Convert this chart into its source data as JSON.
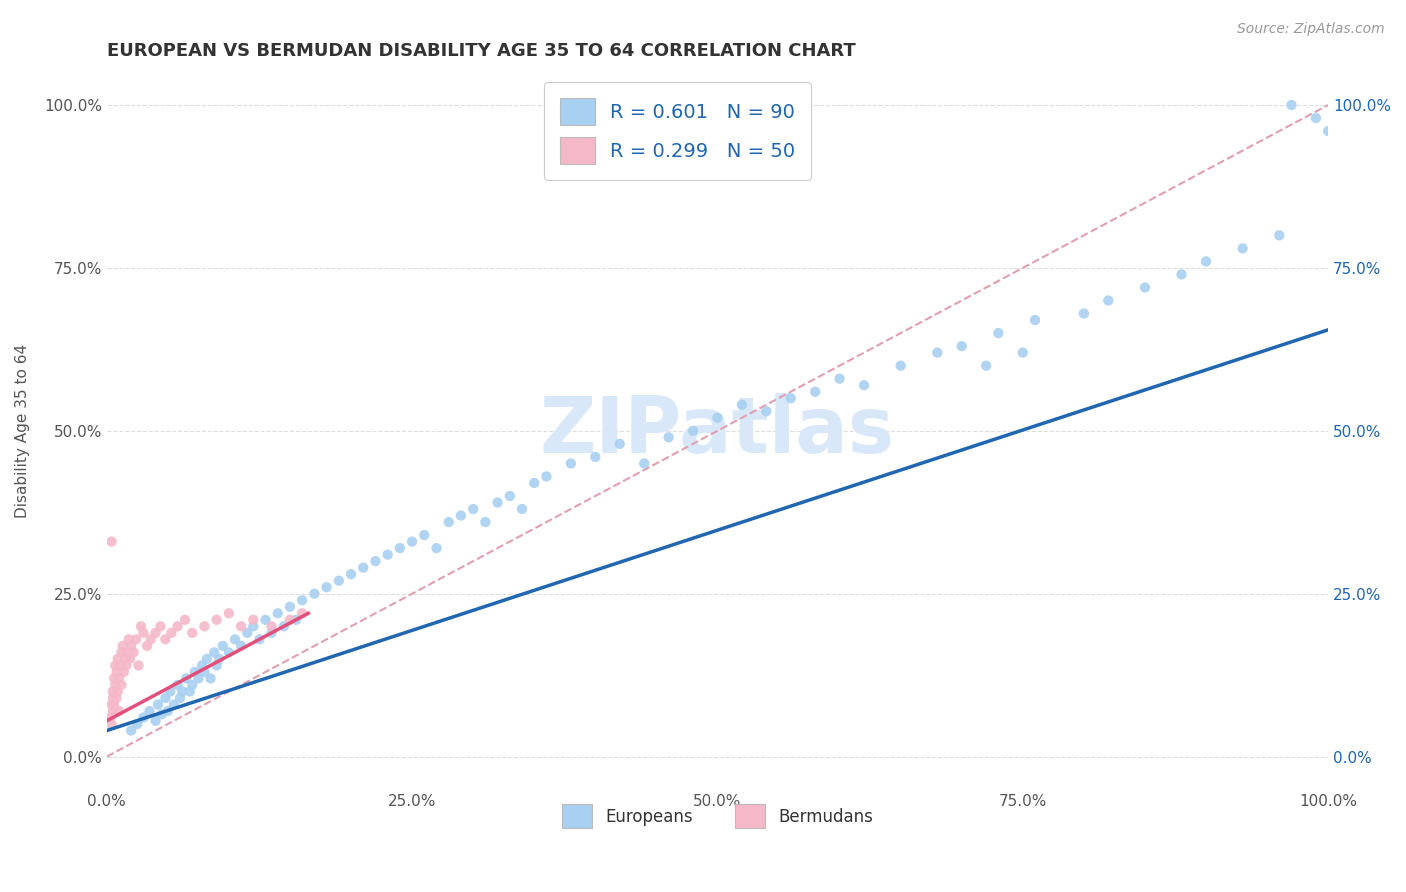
{
  "title": "EUROPEAN VS BERMUDAN DISABILITY AGE 35 TO 64 CORRELATION CHART",
  "source": "Source: ZipAtlas.com",
  "ylabel": "Disability Age 35 to 64",
  "xlim": [
    0,
    1.0
  ],
  "ylim": [
    -0.05,
    1.05
  ],
  "xtick_labels": [
    "0.0%",
    "25.0%",
    "50.0%",
    "75.0%",
    "100.0%"
  ],
  "xtick_vals": [
    0.0,
    0.25,
    0.5,
    0.75,
    1.0
  ],
  "ytick_labels": [
    "0.0%",
    "25.0%",
    "50.0%",
    "75.0%",
    "100.0%"
  ],
  "ytick_vals": [
    0.0,
    0.25,
    0.5,
    0.75,
    1.0
  ],
  "europeans_color": "#A8D0F0",
  "bermudans_color": "#F5B8C8",
  "trendline_european_color": "#2066B0",
  "trendline_bermudan_color": "#E0507A",
  "diagonal_color": "#E0A0B0",
  "diagonal_linestyle": "--",
  "watermark_text": "ZIPatlas",
  "watermark_color": "#D8E8F8",
  "legend_r_european": "R = 0.601",
  "legend_n_european": "N = 90",
  "legend_r_bermudan": "R = 0.299",
  "legend_n_bermudan": "N = 50",
  "background_color": "#FFFFFF",
  "scatter_size": 55,
  "eu_trendline_x0": 0.0,
  "eu_trendline_y0": 0.04,
  "eu_trendline_x1": 1.0,
  "eu_trendline_y1": 0.655,
  "bm_trendline_x0": 0.0,
  "bm_trendline_y0": 0.055,
  "bm_trendline_x1": 0.165,
  "bm_trendline_y1": 0.22,
  "europeans_x": [
    0.02,
    0.025,
    0.03,
    0.035,
    0.04,
    0.042,
    0.045,
    0.048,
    0.05,
    0.052,
    0.055,
    0.058,
    0.06,
    0.062,
    0.065,
    0.068,
    0.07,
    0.072,
    0.075,
    0.078,
    0.08,
    0.082,
    0.085,
    0.088,
    0.09,
    0.092,
    0.095,
    0.1,
    0.105,
    0.11,
    0.115,
    0.12,
    0.125,
    0.13,
    0.135,
    0.14,
    0.145,
    0.15,
    0.155,
    0.16,
    0.17,
    0.18,
    0.19,
    0.2,
    0.21,
    0.22,
    0.23,
    0.24,
    0.25,
    0.26,
    0.27,
    0.28,
    0.29,
    0.3,
    0.31,
    0.32,
    0.33,
    0.34,
    0.35,
    0.36,
    0.38,
    0.4,
    0.42,
    0.44,
    0.46,
    0.48,
    0.5,
    0.52,
    0.54,
    0.56,
    0.58,
    0.6,
    0.62,
    0.65,
    0.68,
    0.7,
    0.73,
    0.76,
    0.8,
    0.82,
    0.85,
    0.88,
    0.9,
    0.93,
    0.96,
    0.97,
    0.99,
    1.0,
    0.72,
    0.75
  ],
  "europeans_y": [
    0.04,
    0.05,
    0.06,
    0.07,
    0.055,
    0.08,
    0.065,
    0.09,
    0.07,
    0.1,
    0.08,
    0.11,
    0.09,
    0.1,
    0.12,
    0.1,
    0.11,
    0.13,
    0.12,
    0.14,
    0.13,
    0.15,
    0.12,
    0.16,
    0.14,
    0.15,
    0.17,
    0.16,
    0.18,
    0.17,
    0.19,
    0.2,
    0.18,
    0.21,
    0.19,
    0.22,
    0.2,
    0.23,
    0.21,
    0.24,
    0.25,
    0.26,
    0.27,
    0.28,
    0.29,
    0.3,
    0.31,
    0.32,
    0.33,
    0.34,
    0.32,
    0.36,
    0.37,
    0.38,
    0.36,
    0.39,
    0.4,
    0.38,
    0.42,
    0.43,
    0.45,
    0.46,
    0.48,
    0.45,
    0.49,
    0.5,
    0.52,
    0.54,
    0.53,
    0.55,
    0.56,
    0.58,
    0.57,
    0.6,
    0.62,
    0.63,
    0.65,
    0.67,
    0.68,
    0.7,
    0.72,
    0.74,
    0.76,
    0.78,
    0.8,
    1.0,
    0.98,
    0.96,
    0.6,
    0.62
  ],
  "bermudans_x": [
    0.003,
    0.004,
    0.004,
    0.005,
    0.005,
    0.005,
    0.006,
    0.006,
    0.007,
    0.007,
    0.008,
    0.008,
    0.009,
    0.009,
    0.01,
    0.01,
    0.011,
    0.012,
    0.012,
    0.013,
    0.014,
    0.015,
    0.016,
    0.017,
    0.018,
    0.019,
    0.02,
    0.022,
    0.024,
    0.026,
    0.028,
    0.03,
    0.033,
    0.036,
    0.04,
    0.044,
    0.048,
    0.053,
    0.058,
    0.064,
    0.07,
    0.08,
    0.09,
    0.1,
    0.11,
    0.12,
    0.135,
    0.15,
    0.16,
    0.004
  ],
  "bermudans_y": [
    0.06,
    0.08,
    0.05,
    0.07,
    0.09,
    0.1,
    0.12,
    0.08,
    0.11,
    0.14,
    0.09,
    0.13,
    0.1,
    0.15,
    0.12,
    0.07,
    0.14,
    0.16,
    0.11,
    0.17,
    0.13,
    0.15,
    0.14,
    0.16,
    0.18,
    0.15,
    0.17,
    0.16,
    0.18,
    0.14,
    0.2,
    0.19,
    0.17,
    0.18,
    0.19,
    0.2,
    0.18,
    0.19,
    0.2,
    0.21,
    0.19,
    0.2,
    0.21,
    0.22,
    0.2,
    0.21,
    0.2,
    0.21,
    0.22,
    0.33
  ]
}
